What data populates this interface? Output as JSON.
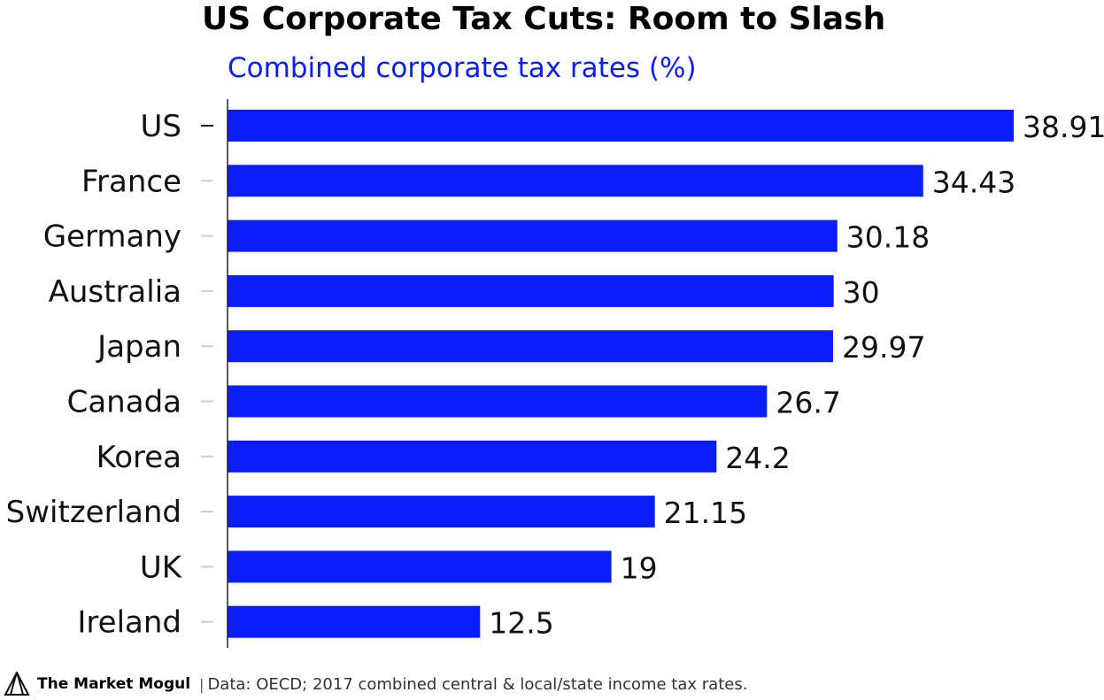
{
  "title": "US Corporate Tax Cuts: Room to Slash",
  "subtitle": "Combined corporate tax rates (%)",
  "footer": {
    "brand": "The Market Mogul",
    "separator": "|",
    "source": "Data: OECD; 2017 combined central & local/state income tax rates."
  },
  "chart_data": {
    "type": "bar",
    "orientation": "horizontal",
    "categories": [
      "US",
      "France",
      "Germany",
      "Australia",
      "Japan",
      "Canada",
      "Korea",
      "Switzerland",
      "UK",
      "Ireland"
    ],
    "values": [
      38.91,
      34.43,
      30.18,
      30,
      29.97,
      26.7,
      24.2,
      21.15,
      19,
      12.5
    ],
    "value_labels": [
      "38.91",
      "34.43",
      "30.18",
      "30",
      "29.97",
      "26.7",
      "24.2",
      "21.15",
      "19",
      "12.5"
    ],
    "title": "US Corporate Tax Cuts: Room to Slash",
    "subtitle": "Combined corporate tax rates (%)",
    "xlabel": "",
    "ylabel": "",
    "xlim": [
      0,
      38.91
    ],
    "grid": false,
    "legend": "none",
    "bar_color": "#0a1efc",
    "highlighted_category": "US"
  },
  "colors": {
    "bar": "#0a1efc",
    "subtitle": "#0a1efc",
    "text": "#111111",
    "tick_default": "#cccccc",
    "tick_highlight": "#111111"
  },
  "icons": {
    "logo": "market-mogul-logo-icon"
  }
}
